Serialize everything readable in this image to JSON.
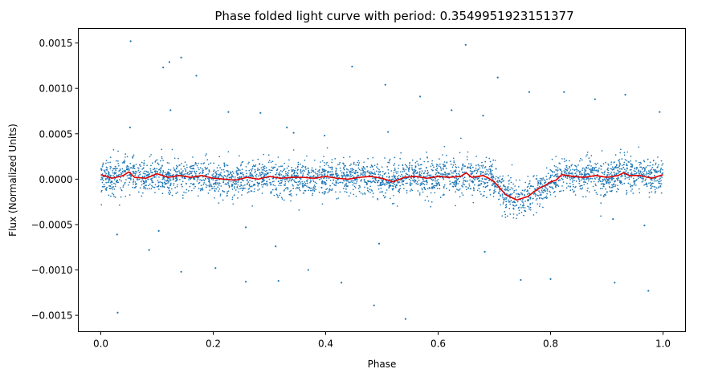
{
  "chart_data": {
    "type": "scatter",
    "title": "Phase folded light curve with period: 0.3549951923151377",
    "xlabel": "Phase",
    "ylabel": "Flux (Normalized Units)",
    "xlim": [
      -0.04,
      1.04
    ],
    "ylim": [
      -0.00168,
      0.00166
    ],
    "xticks": [
      0.0,
      0.2,
      0.4,
      0.6,
      0.8,
      1.0
    ],
    "xtick_labels": [
      "0.0",
      "0.2",
      "0.4",
      "0.6",
      "0.8",
      "1.0"
    ],
    "yticks": [
      -0.0015,
      -0.001,
      -0.0005,
      0.0,
      0.0005,
      0.001,
      0.0015
    ],
    "ytick_labels": [
      "−0.0015",
      "−0.0010",
      "−0.0005",
      "0.0000",
      "0.0005",
      "0.0010",
      "0.0015"
    ],
    "grid": false,
    "colors": {
      "points": "#1f77b4",
      "binned": "#e00000"
    },
    "series": [
      {
        "kind": "scatter",
        "note_points": "dense band of ~4000 points with scatter about 0.0001; only outliers listed explicitly",
        "outliers": [
          [
            0.053,
            0.00152
          ],
          [
            0.649,
            0.00148
          ],
          [
            0.143,
            0.00134
          ],
          [
            0.122,
            0.00129
          ],
          [
            0.111,
            0.00123
          ],
          [
            0.447,
            0.00124
          ],
          [
            0.17,
            0.00114
          ],
          [
            0.706,
            0.00112
          ],
          [
            0.506,
            0.00104
          ],
          [
            0.762,
            0.00096
          ],
          [
            0.824,
            0.00096
          ],
          [
            0.568,
            0.00091
          ],
          [
            0.933,
            0.00093
          ],
          [
            0.879,
            0.00088
          ],
          [
            0.994,
            0.00074
          ],
          [
            0.124,
            0.00076
          ],
          [
            0.227,
            0.00074
          ],
          [
            0.284,
            0.00073
          ],
          [
            0.624,
            0.00076
          ],
          [
            0.68,
            0.0007
          ],
          [
            0.052,
            0.00057
          ],
          [
            0.331,
            0.00057
          ],
          [
            0.343,
            0.00051
          ],
          [
            0.511,
            0.00052
          ],
          [
            0.398,
            0.00048
          ],
          [
            0.029,
            -0.00061
          ],
          [
            0.086,
            -0.00078
          ],
          [
            0.103,
            -0.00057
          ],
          [
            0.258,
            -0.00053
          ],
          [
            0.311,
            -0.00074
          ],
          [
            0.495,
            -0.00071
          ],
          [
            0.683,
            -0.0008
          ],
          [
            0.143,
            -0.00102
          ],
          [
            0.204,
            -0.00098
          ],
          [
            0.258,
            -0.00113
          ],
          [
            0.316,
            -0.00112
          ],
          [
            0.369,
            -0.001
          ],
          [
            0.428,
            -0.00114
          ],
          [
            0.747,
            -0.00111
          ],
          [
            0.8,
            -0.0011
          ],
          [
            0.914,
            -0.00114
          ],
          [
            0.974,
            -0.00123
          ],
          [
            0.03,
            -0.00147
          ],
          [
            0.486,
            -0.00139
          ],
          [
            0.542,
            -0.00154
          ],
          [
            0.967,
            -0.00051
          ],
          [
            0.911,
            -0.00044
          ]
        ]
      },
      {
        "kind": "line",
        "x": [
          0.0,
          0.02,
          0.04,
          0.05,
          0.06,
          0.08,
          0.1,
          0.12,
          0.14,
          0.16,
          0.18,
          0.2,
          0.22,
          0.24,
          0.26,
          0.28,
          0.3,
          0.32,
          0.34,
          0.36,
          0.38,
          0.4,
          0.42,
          0.44,
          0.46,
          0.48,
          0.5,
          0.52,
          0.54,
          0.56,
          0.58,
          0.6,
          0.62,
          0.64,
          0.65,
          0.66,
          0.68,
          0.69,
          0.7,
          0.71,
          0.72,
          0.73,
          0.74,
          0.75,
          0.76,
          0.77,
          0.78,
          0.79,
          0.8,
          0.81,
          0.82,
          0.84,
          0.86,
          0.88,
          0.9,
          0.92,
          0.93,
          0.94,
          0.96,
          0.98,
          1.0
        ],
        "y": [
          5e-05,
          1e-05,
          4e-05,
          8e-05,
          2e-05,
          1e-05,
          6e-05,
          2e-05,
          4e-05,
          2e-05,
          4e-05,
          1e-05,
          0.0,
          -1e-05,
          2e-05,
          0.0,
          3e-05,
          1e-05,
          2e-05,
          2e-05,
          1e-05,
          3e-05,
          1e-05,
          0.0,
          2e-05,
          3e-05,
          1e-05,
          -3e-05,
          2e-05,
          3e-05,
          1e-05,
          3e-05,
          2e-05,
          3e-05,
          7e-05,
          2e-05,
          4e-05,
          1e-05,
          -3e-05,
          -0.0001,
          -0.00017,
          -0.0002,
          -0.00023,
          -0.00021,
          -0.00019,
          -0.00014,
          -0.0001,
          -7e-05,
          -3e-05,
          -1e-05,
          5e-05,
          3e-05,
          2e-05,
          4e-05,
          2e-05,
          4e-05,
          7e-05,
          4e-05,
          4e-05,
          1e-05,
          5e-05
        ]
      }
    ]
  }
}
